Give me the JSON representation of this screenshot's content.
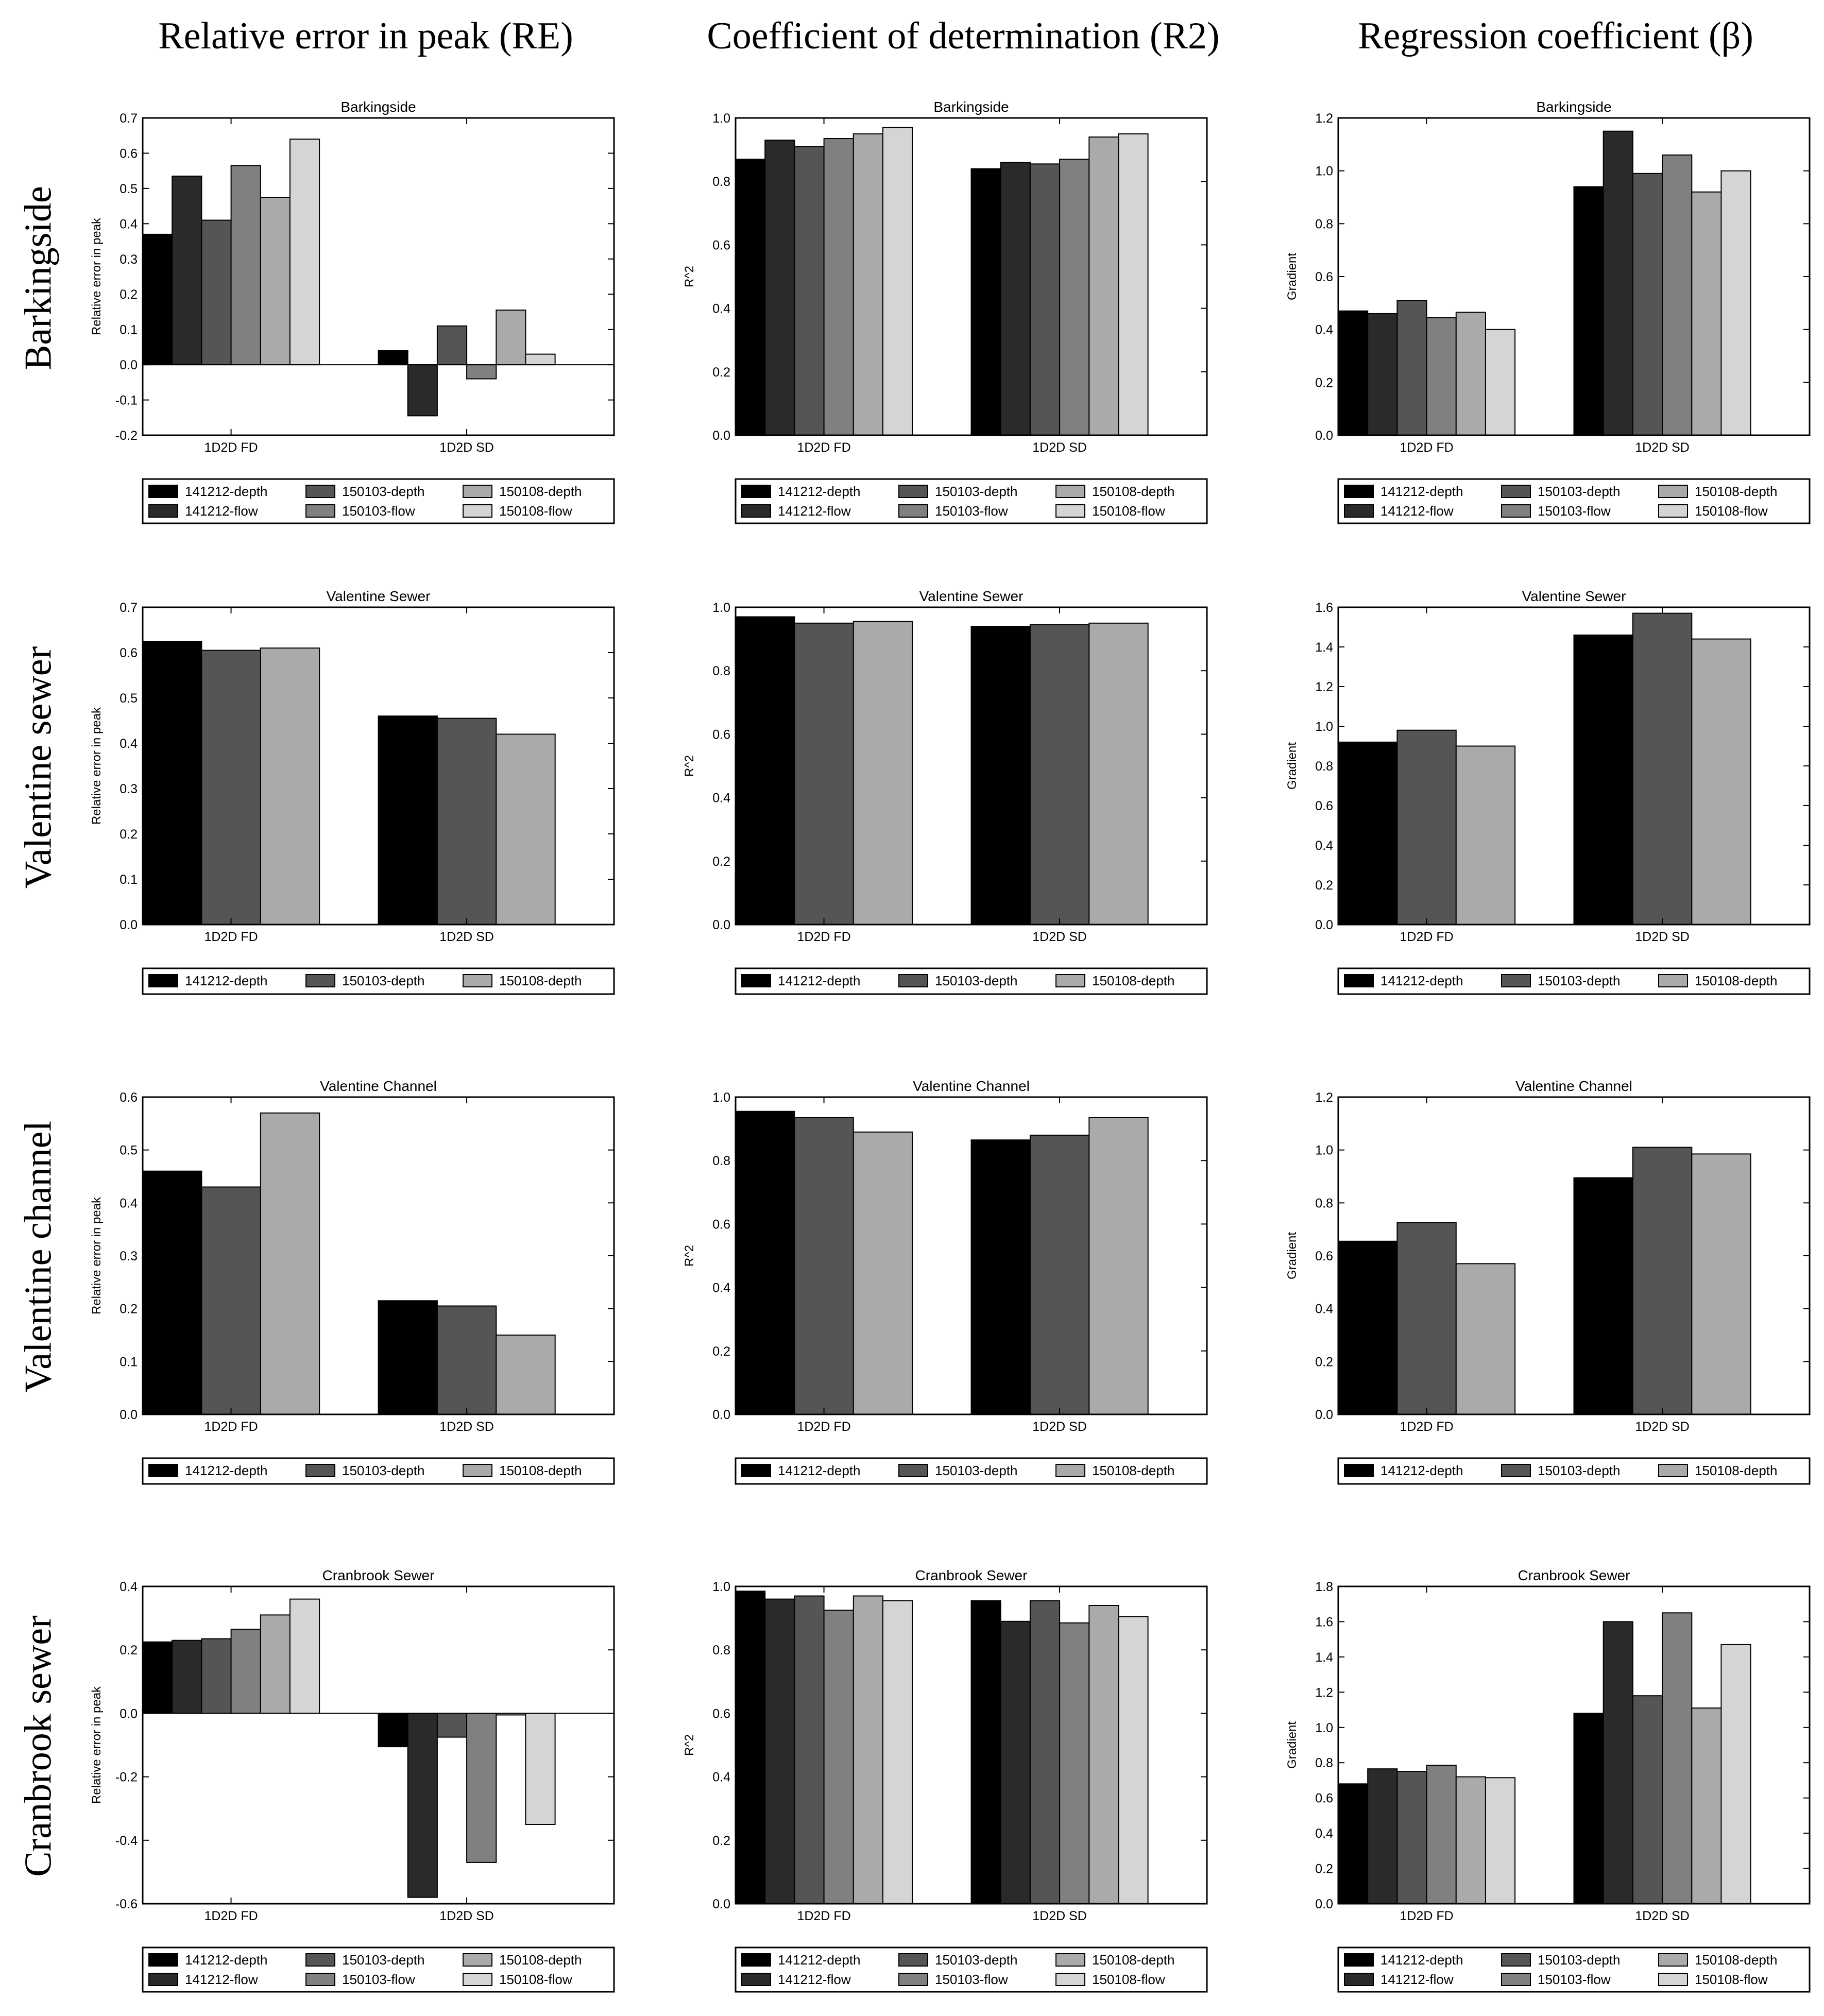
{
  "column_titles": [
    "Relative error in peak (RE)",
    "Coefficient of determination (R2)",
    "Regression coefficient (β)"
  ],
  "row_titles": [
    "Barkingside",
    "Valentine sewer",
    "Valentine channel",
    "Cranbrook sewer"
  ],
  "colors": {
    "141212-depth": "#000000",
    "141212-flow": "#2a2a2a",
    "150103-depth": "#555555",
    "150103-flow": "#808080",
    "150108-depth": "#aaaaaa",
    "150108-flow": "#d5d5d5"
  },
  "chart_data": [
    {
      "type": "bar",
      "title": "Barkingside",
      "ylabel": "Relative error in peak",
      "categories": [
        "1D2D FD",
        "1D2D SD"
      ],
      "ylim": [
        -0.2,
        0.7
      ],
      "yticks": [
        "-0.2",
        "-0.1",
        "0.0",
        "0.1",
        "0.2",
        "0.3",
        "0.4",
        "0.5",
        "0.6",
        "0.7"
      ],
      "legend_position": "below",
      "series": [
        {
          "name": "141212-depth",
          "values": [
            0.37,
            0.04
          ]
        },
        {
          "name": "141212-flow",
          "values": [
            0.535,
            -0.145
          ]
        },
        {
          "name": "150103-depth",
          "values": [
            0.41,
            0.11
          ]
        },
        {
          "name": "150103-flow",
          "values": [
            0.565,
            -0.04
          ]
        },
        {
          "name": "150108-depth",
          "values": [
            0.475,
            0.155
          ]
        },
        {
          "name": "150108-flow",
          "values": [
            0.64,
            0.03
          ]
        }
      ]
    },
    {
      "type": "bar",
      "title": "Barkingside",
      "ylabel": "R^2",
      "categories": [
        "1D2D FD",
        "1D2D SD"
      ],
      "ylim": [
        0,
        1.0
      ],
      "yticks": [
        "0.0",
        "0.2",
        "0.4",
        "0.6",
        "0.8",
        "1.0"
      ],
      "legend_position": "below",
      "series": [
        {
          "name": "141212-depth",
          "values": [
            0.87,
            0.84
          ]
        },
        {
          "name": "141212-flow",
          "values": [
            0.93,
            0.86
          ]
        },
        {
          "name": "150103-depth",
          "values": [
            0.91,
            0.855
          ]
        },
        {
          "name": "150103-flow",
          "values": [
            0.935,
            0.87
          ]
        },
        {
          "name": "150108-depth",
          "values": [
            0.95,
            0.94
          ]
        },
        {
          "name": "150108-flow",
          "values": [
            0.97,
            0.95
          ]
        }
      ]
    },
    {
      "type": "bar",
      "title": "Barkingside",
      "ylabel": "Gradient",
      "categories": [
        "1D2D FD",
        "1D2D SD"
      ],
      "ylim": [
        0,
        1.2
      ],
      "yticks": [
        "0.0",
        "0.2",
        "0.4",
        "0.6",
        "0.8",
        "1.0",
        "1.2"
      ],
      "legend_position": "below",
      "series": [
        {
          "name": "141212-depth",
          "values": [
            0.47,
            0.94
          ]
        },
        {
          "name": "141212-flow",
          "values": [
            0.46,
            1.15
          ]
        },
        {
          "name": "150103-depth",
          "values": [
            0.51,
            0.99
          ]
        },
        {
          "name": "150103-flow",
          "values": [
            0.445,
            1.06
          ]
        },
        {
          "name": "150108-depth",
          "values": [
            0.465,
            0.92
          ]
        },
        {
          "name": "150108-flow",
          "values": [
            0.4,
            1.0
          ]
        }
      ]
    },
    {
      "type": "bar",
      "title": "Valentine Sewer",
      "ylabel": "Relative error in peak",
      "categories": [
        "1D2D FD",
        "1D2D SD"
      ],
      "ylim": [
        0,
        0.7
      ],
      "yticks": [
        "0.0",
        "0.1",
        "0.2",
        "0.3",
        "0.4",
        "0.5",
        "0.6",
        "0.7"
      ],
      "legend_position": "below",
      "series": [
        {
          "name": "141212-depth",
          "values": [
            0.625,
            0.46
          ]
        },
        {
          "name": "150103-depth",
          "values": [
            0.605,
            0.455
          ]
        },
        {
          "name": "150108-depth",
          "values": [
            0.61,
            0.42
          ]
        }
      ]
    },
    {
      "type": "bar",
      "title": "Valentine Sewer",
      "ylabel": "R^2",
      "categories": [
        "1D2D FD",
        "1D2D SD"
      ],
      "ylim": [
        0,
        1.0
      ],
      "yticks": [
        "0.0",
        "0.2",
        "0.4",
        "0.6",
        "0.8",
        "1.0"
      ],
      "legend_position": "below",
      "series": [
        {
          "name": "141212-depth",
          "values": [
            0.97,
            0.94
          ]
        },
        {
          "name": "150103-depth",
          "values": [
            0.95,
            0.945
          ]
        },
        {
          "name": "150108-depth",
          "values": [
            0.955,
            0.95
          ]
        }
      ]
    },
    {
      "type": "bar",
      "title": "Valentine Sewer",
      "ylabel": "Gradient",
      "categories": [
        "1D2D FD",
        "1D2D SD"
      ],
      "ylim": [
        0,
        1.6
      ],
      "yticks": [
        "0.0",
        "0.2",
        "0.4",
        "0.6",
        "0.8",
        "1.0",
        "1.2",
        "1.4",
        "1.6"
      ],
      "legend_position": "below",
      "series": [
        {
          "name": "141212-depth",
          "values": [
            0.92,
            1.46
          ]
        },
        {
          "name": "150103-depth",
          "values": [
            0.98,
            1.57
          ]
        },
        {
          "name": "150108-depth",
          "values": [
            0.9,
            1.44
          ]
        }
      ]
    },
    {
      "type": "bar",
      "title": "Valentine Channel",
      "ylabel": "Relative error in peak",
      "categories": [
        "1D2D FD",
        "1D2D SD"
      ],
      "ylim": [
        0,
        0.6
      ],
      "yticks": [
        "0.0",
        "0.1",
        "0.2",
        "0.3",
        "0.4",
        "0.5",
        "0.6"
      ],
      "legend_position": "below",
      "series": [
        {
          "name": "141212-depth",
          "values": [
            0.46,
            0.215
          ]
        },
        {
          "name": "150103-depth",
          "values": [
            0.43,
            0.205
          ]
        },
        {
          "name": "150108-depth",
          "values": [
            0.57,
            0.15
          ]
        }
      ]
    },
    {
      "type": "bar",
      "title": "Valentine Channel",
      "ylabel": "R^2",
      "categories": [
        "1D2D FD",
        "1D2D SD"
      ],
      "ylim": [
        0,
        1.0
      ],
      "yticks": [
        "0.0",
        "0.2",
        "0.4",
        "0.6",
        "0.8",
        "1.0"
      ],
      "legend_position": "below",
      "series": [
        {
          "name": "141212-depth",
          "values": [
            0.955,
            0.865
          ]
        },
        {
          "name": "150103-depth",
          "values": [
            0.935,
            0.88
          ]
        },
        {
          "name": "150108-depth",
          "values": [
            0.89,
            0.935
          ]
        }
      ]
    },
    {
      "type": "bar",
      "title": "Valentine Channel",
      "ylabel": "Gradient",
      "categories": [
        "1D2D FD",
        "1D2D SD"
      ],
      "ylim": [
        0,
        1.2
      ],
      "yticks": [
        "0.0",
        "0.2",
        "0.4",
        "0.6",
        "0.8",
        "1.0",
        "1.2"
      ],
      "legend_position": "below",
      "series": [
        {
          "name": "141212-depth",
          "values": [
            0.655,
            0.895
          ]
        },
        {
          "name": "150103-depth",
          "values": [
            0.725,
            1.01
          ]
        },
        {
          "name": "150108-depth",
          "values": [
            0.57,
            0.985
          ]
        }
      ]
    },
    {
      "type": "bar",
      "title": "Cranbrook Sewer",
      "ylabel": "Relative error in peak",
      "categories": [
        "1D2D FD",
        "1D2D SD"
      ],
      "ylim": [
        -0.6,
        0.4
      ],
      "yticks": [
        "-0.6",
        "-0.4",
        "-0.2",
        "0.0",
        "0.2",
        "0.4"
      ],
      "legend_position": "below",
      "series": [
        {
          "name": "141212-depth",
          "values": [
            0.225,
            -0.105
          ]
        },
        {
          "name": "141212-flow",
          "values": [
            0.23,
            -0.58
          ]
        },
        {
          "name": "150103-depth",
          "values": [
            0.235,
            -0.075
          ]
        },
        {
          "name": "150103-flow",
          "values": [
            0.265,
            -0.47
          ]
        },
        {
          "name": "150108-depth",
          "values": [
            0.31,
            -0.005
          ]
        },
        {
          "name": "150108-flow",
          "values": [
            0.36,
            -0.35
          ]
        }
      ]
    },
    {
      "type": "bar",
      "title": "Cranbrook Sewer",
      "ylabel": "R^2",
      "categories": [
        "1D2D FD",
        "1D2D SD"
      ],
      "ylim": [
        0,
        1.0
      ],
      "yticks": [
        "0.0",
        "0.2",
        "0.4",
        "0.6",
        "0.8",
        "1.0"
      ],
      "legend_position": "below",
      "series": [
        {
          "name": "141212-depth",
          "values": [
            0.985,
            0.955
          ]
        },
        {
          "name": "141212-flow",
          "values": [
            0.96,
            0.89
          ]
        },
        {
          "name": "150103-depth",
          "values": [
            0.97,
            0.955
          ]
        },
        {
          "name": "150103-flow",
          "values": [
            0.925,
            0.885
          ]
        },
        {
          "name": "150108-depth",
          "values": [
            0.97,
            0.94
          ]
        },
        {
          "name": "150108-flow",
          "values": [
            0.955,
            0.905
          ]
        }
      ]
    },
    {
      "type": "bar",
      "title": "Cranbrook Sewer",
      "ylabel": "Gradient",
      "categories": [
        "1D2D FD",
        "1D2D SD"
      ],
      "ylim": [
        0,
        1.8
      ],
      "yticks": [
        "0.0",
        "0.2",
        "0.4",
        "0.6",
        "0.8",
        "1.0",
        "1.2",
        "1.4",
        "1.6",
        "1.8"
      ],
      "legend_position": "below",
      "series": [
        {
          "name": "141212-depth",
          "values": [
            0.68,
            1.08
          ]
        },
        {
          "name": "141212-flow",
          "values": [
            0.765,
            1.6
          ]
        },
        {
          "name": "150103-depth",
          "values": [
            0.75,
            1.18
          ]
        },
        {
          "name": "150103-flow",
          "values": [
            0.785,
            1.65
          ]
        },
        {
          "name": "150108-depth",
          "values": [
            0.72,
            1.11
          ]
        },
        {
          "name": "150108-flow",
          "values": [
            0.715,
            1.47
          ]
        }
      ]
    }
  ]
}
